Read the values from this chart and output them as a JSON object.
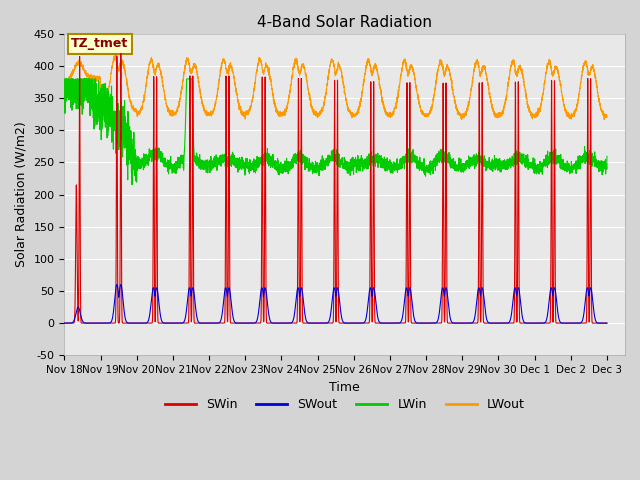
{
  "title": "4-Band Solar Radiation",
  "xlabel": "Time",
  "ylabel": "Solar Radiation (W/m2)",
  "ylim": [
    -50,
    450
  ],
  "xlim": [
    0,
    15.5
  ],
  "colors": {
    "SWin": "#dd0000",
    "SWout": "#0000dd",
    "LWin": "#00cc00",
    "LWout": "#ff9900"
  },
  "annotation_text": "TZ_tmet",
  "annotation_bg": "#ffffcc",
  "annotation_border": "#aa8800",
  "xtick_labels": [
    "Nov 18",
    "Nov 19",
    "Nov 20",
    "Nov 21",
    "Nov 22",
    "Nov 23",
    "Nov 24",
    "Nov 25",
    "Nov 26",
    "Nov 27",
    "Nov 28",
    "Nov 29",
    "Nov 30",
    "Dec 1",
    "Dec 2",
    "Dec 3"
  ],
  "xtick_positions": [
    0,
    1,
    2,
    3,
    4,
    5,
    6,
    7,
    8,
    9,
    10,
    11,
    12,
    13,
    14,
    15
  ],
  "ytick_positions": [
    -50,
    0,
    50,
    100,
    150,
    200,
    250,
    300,
    350,
    400,
    450
  ],
  "grid_color": "#ffffff",
  "linewidth": 0.8,
  "fig_facecolor": "#d4d4d4",
  "ax_facecolor": "#e8e8e8"
}
